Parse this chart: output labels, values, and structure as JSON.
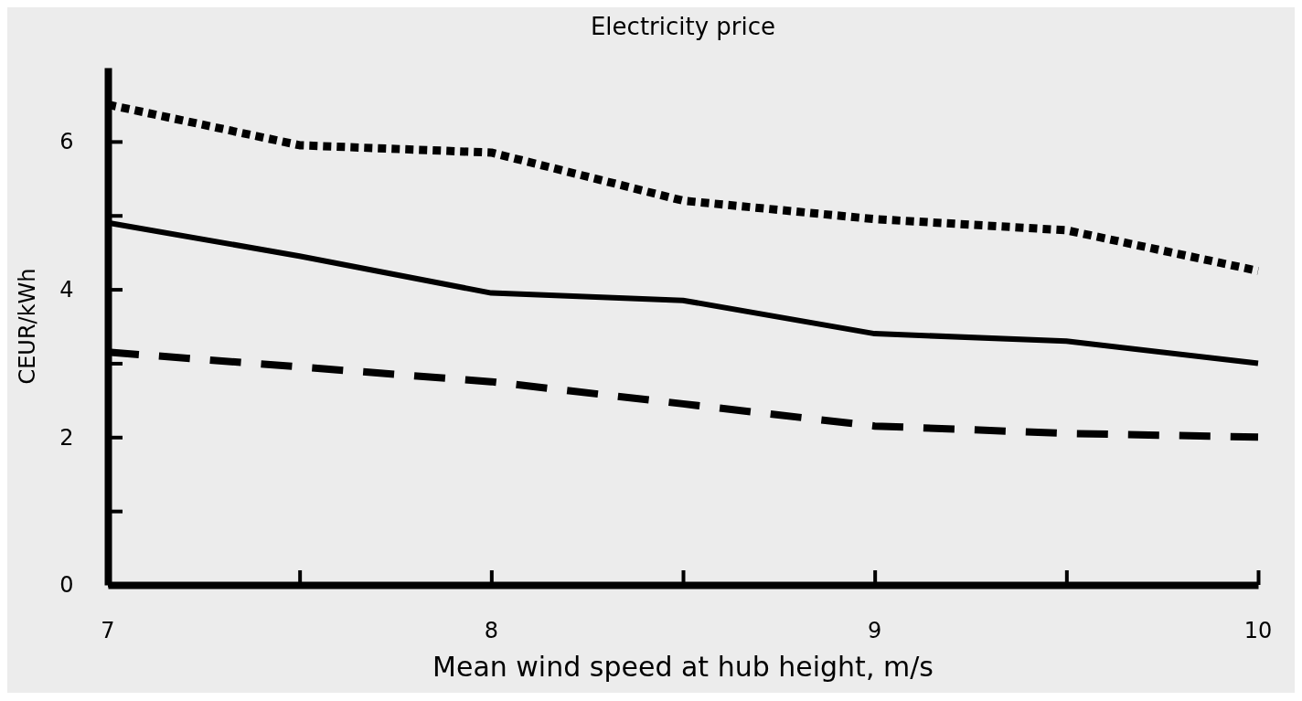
{
  "chart_data": {
    "type": "line",
    "title": "Electricity price",
    "xlabel": "Mean wind speed at hub height, m/s",
    "ylabel": "CEUR/kWh",
    "xlim": [
      7,
      10
    ],
    "xticks": [
      7,
      {
        "value": 7.5,
        "label": null
      },
      8,
      {
        "value": 8.5,
        "label": null
      },
      9,
      {
        "value": 9.5,
        "label": null
      },
      10
    ],
    "ylim": [
      0,
      7
    ],
    "yticks": [
      0,
      {
        "value": 1,
        "label": null
      },
      2,
      {
        "value": 3,
        "label": null
      },
      4,
      {
        "value": 5,
        "label": null
      },
      6
    ],
    "x": [
      7,
      7.5,
      8,
      8.5,
      9,
      9.5,
      10
    ],
    "grid": false,
    "marker": "none",
    "series": [
      {
        "color": "#000000",
        "line_style": "dotted",
        "values": [
          6.5,
          5.95,
          5.85,
          5.2,
          4.95,
          4.8,
          4.25
        ]
      },
      {
        "color": "#000000",
        "line_style": "solid",
        "values": [
          4.9,
          4.45,
          3.95,
          3.85,
          3.4,
          3.3,
          3.0
        ]
      },
      {
        "color": "#000000",
        "line_style": "dashed",
        "values": [
          3.15,
          2.95,
          2.75,
          2.45,
          2.15,
          2.05,
          2.0
        ]
      }
    ]
  }
}
